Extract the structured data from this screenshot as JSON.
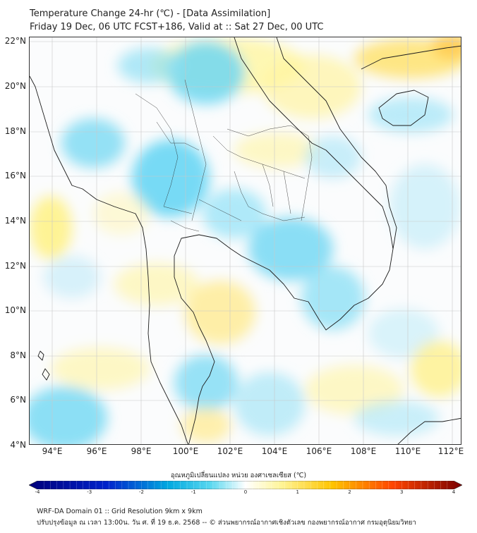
{
  "title": {
    "line1": "Temperature Change 24-hr (℃) - [Data Assimilation]",
    "line2": "Friday 19 Dec, 06 UTC FCST+186, Valid at :: Sat 27 Dec, 00 UTC"
  },
  "map": {
    "region": "Thailand and mainland Southeast Asia",
    "lat_labels": [
      "22°N",
      "20°N",
      "18°N",
      "16°N",
      "14°N",
      "12°N",
      "10°N",
      "8°N",
      "6°N",
      "4°N"
    ],
    "lon_labels": [
      "94°E",
      "96°E",
      "98°E",
      "100°E",
      "102°E",
      "104°E",
      "106°E",
      "108°E",
      "110°E",
      "112°E"
    ]
  },
  "colorbar": {
    "label": "อุณหภูมิเปลี่ยนแปลง หน่วย องศาเซลเซียส (℃)",
    "ticks": [
      "-4",
      "-3",
      "-2",
      "-1",
      "0",
      "1",
      "2",
      "3",
      "4"
    ],
    "min": -4,
    "max": 4,
    "colors": {
      "darkest_cold": "#00007a",
      "cold": "#0022cc",
      "mid_cold": "#00a8e0",
      "light_cold": "#5ad8f0",
      "neutral": "#ffffff",
      "light_warm": "#fff59a",
      "warm": "#ffc400",
      "hot": "#ff4400",
      "darkest_hot": "#7a0000"
    }
  },
  "footer": {
    "line1": "WRF-DA Domain 01 :: Grid Resolution 9km x 9km",
    "line2": "ปรับปรุงข้อมูล ณ เวลา 13:00น. วัน ศ. ที่ 19 ธ.ค. 2568 -- © ส่วนพยากรณ์อากาศเชิงตัวเลข กองพยากรณ์อากาศ กรมอุตุนิยมวิทยา"
  }
}
